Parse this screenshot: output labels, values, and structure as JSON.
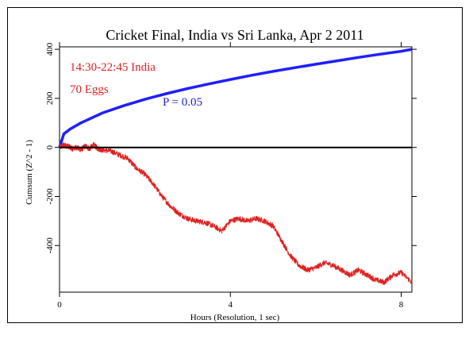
{
  "chart_data": {
    "type": "line",
    "title": "Cricket Final, India vs Sri Lanka, Apr 2 2011",
    "xlabel": "Hours (Resolution, 1 sec)",
    "ylabel": "Cumsum (Z^2 - 1)",
    "xlim": [
      0,
      8.25
    ],
    "ylim": [
      -590,
      410
    ],
    "x_ticks": [
      0,
      4,
      8
    ],
    "y_ticks": [
      -400,
      -200,
      0,
      200,
      400
    ],
    "grid": false,
    "annotations": [
      {
        "text": "14:30-22:45 India",
        "color": "#e02020"
      },
      {
        "text": "70 Eggs",
        "color": "#e02020"
      },
      {
        "text": "P = 0.05",
        "color": "#2020c0"
      }
    ],
    "series": [
      {
        "role": "probability envelope",
        "color": "#1f1fff",
        "x": [
          0,
          0.1,
          0.25,
          0.5,
          1,
          1.5,
          2,
          2.5,
          3,
          3.5,
          4,
          4.5,
          5,
          5.5,
          6,
          6.5,
          7,
          7.5,
          8,
          8.25
        ],
        "y": [
          0,
          55,
          75,
          100,
          140,
          170,
          196,
          219,
          240,
          259,
          277,
          294,
          310,
          325,
          339,
          353,
          367,
          380,
          392,
          400
        ]
      },
      {
        "role": "cumulative deviation",
        "color": "#e02020",
        "x": [
          0,
          0.1,
          0.2,
          0.3,
          0.4,
          0.5,
          0.6,
          0.7,
          0.8,
          0.9,
          1.0,
          1.2,
          1.4,
          1.6,
          1.8,
          2.0,
          2.2,
          2.4,
          2.6,
          2.8,
          3.0,
          3.2,
          3.4,
          3.6,
          3.8,
          4.0,
          4.2,
          4.4,
          4.6,
          4.8,
          5.0,
          5.2,
          5.4,
          5.6,
          5.8,
          6.0,
          6.2,
          6.4,
          6.6,
          6.8,
          7.0,
          7.2,
          7.4,
          7.6,
          7.8,
          8.0,
          8.25
        ],
        "y": [
          0,
          10,
          5,
          -5,
          0,
          -10,
          5,
          -5,
          10,
          -5,
          -10,
          -15,
          -30,
          -45,
          -85,
          -110,
          -150,
          -200,
          -240,
          -270,
          -290,
          -300,
          -305,
          -320,
          -340,
          -300,
          -290,
          -300,
          -290,
          -300,
          -320,
          -380,
          -440,
          -480,
          -500,
          -490,
          -470,
          -480,
          -500,
          -520,
          -500,
          -520,
          -540,
          -550,
          -520,
          -510,
          -550
        ]
      },
      {
        "role": "zero line",
        "color": "#000000",
        "x": [
          0,
          8.25
        ],
        "y": [
          0,
          0
        ]
      }
    ]
  }
}
